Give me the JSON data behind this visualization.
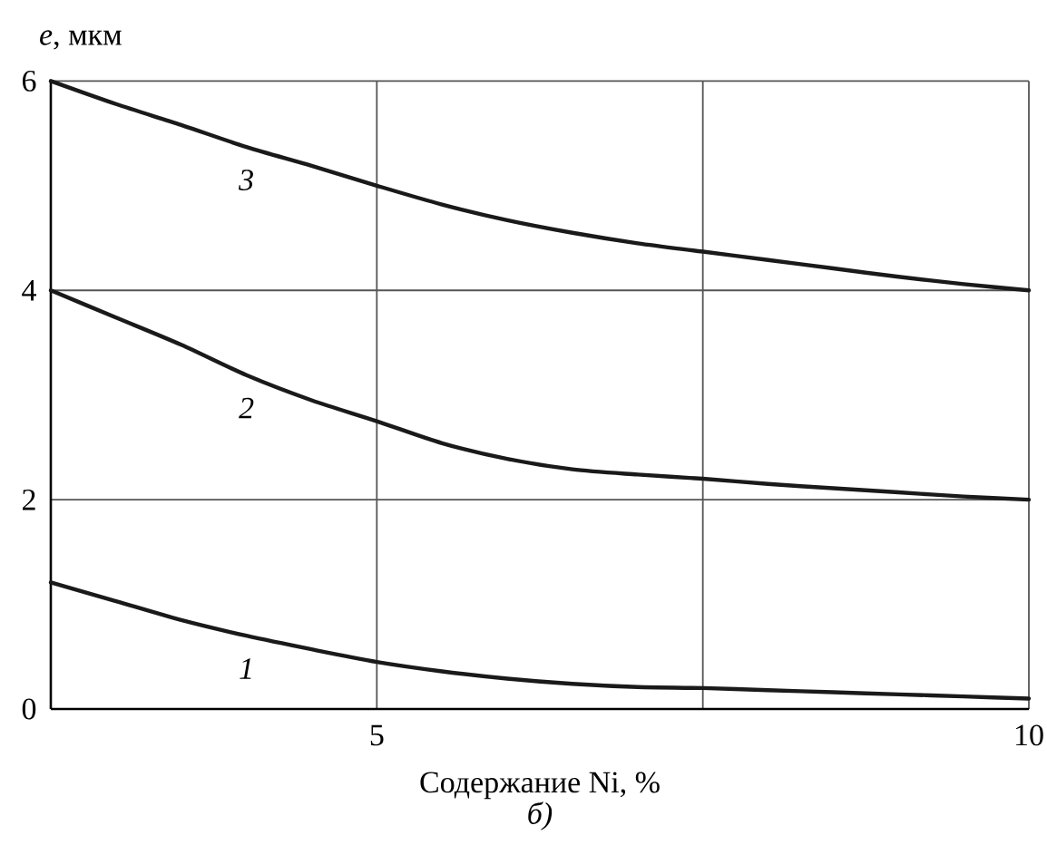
{
  "chart_data": {
    "type": "line",
    "xlabel": "Содержание Ni, %",
    "ylabel": "*e*, мкм",
    "annotations": [
      "б)"
    ],
    "xlim": [
      2.5,
      10
    ],
    "ylim": [
      0,
      6
    ],
    "xticks": [
      5,
      {
        "value": 7.5,
        "label": null
      },
      10
    ],
    "yticks": [
      0,
      2,
      4,
      6
    ],
    "grid": true,
    "marker": "none",
    "line_style": "solid",
    "x": [
      2.5,
      3,
      3.5,
      4,
      4.5,
      5,
      5.5,
      6,
      6.5,
      7,
      7.5,
      8,
      8.5,
      9,
      9.5,
      10
    ],
    "series": [
      {
        "name": "1",
        "color": "#1a1a1a",
        "values": [
          1.21,
          1.03,
          0.85,
          0.7,
          0.57,
          0.45,
          0.36,
          0.29,
          0.24,
          0.21,
          0.2,
          0.18,
          0.16,
          0.14,
          0.12,
          0.1
        ]
      },
      {
        "name": "2",
        "color": "#1a1a1a",
        "values": [
          4.0,
          3.74,
          3.48,
          3.19,
          2.95,
          2.75,
          2.54,
          2.39,
          2.29,
          2.24,
          2.2,
          2.15,
          2.11,
          2.07,
          2.03,
          2.0
        ]
      },
      {
        "name": "3",
        "color": "#1a1a1a",
        "values": [
          6.0,
          5.78,
          5.58,
          5.37,
          5.19,
          5.0,
          4.82,
          4.67,
          4.55,
          4.45,
          4.37,
          4.29,
          4.21,
          4.13,
          4.06,
          4.0
        ]
      }
    ]
  }
}
